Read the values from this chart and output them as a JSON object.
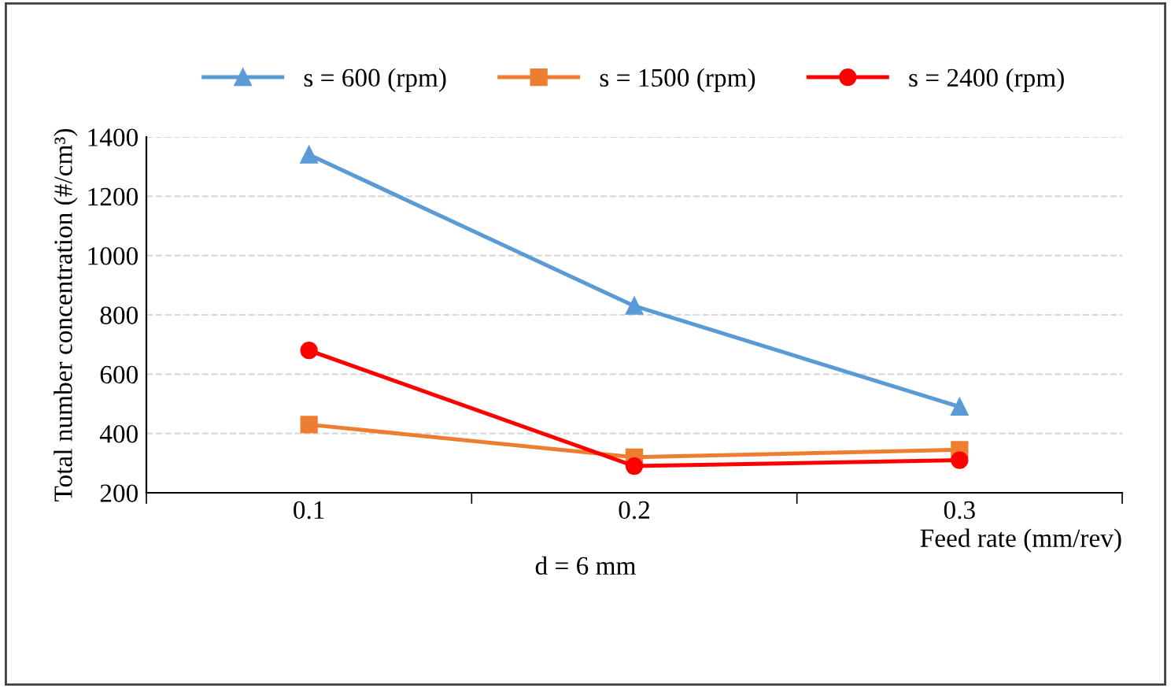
{
  "chart_data": {
    "type": "line",
    "categories": [
      "0.1",
      "0.2",
      "0.3"
    ],
    "series": [
      {
        "name": "s = 600 (rpm)",
        "color": "#5b9bd5",
        "marker": "triangle",
        "values": [
          1340,
          830,
          490
        ]
      },
      {
        "name": "s = 1500 (rpm)",
        "color": "#ed7d31",
        "marker": "square",
        "values": [
          430,
          320,
          345
        ]
      },
      {
        "name": "s = 2400 (rpm)",
        "color": "#ff0000",
        "marker": "circle",
        "values": [
          680,
          290,
          310
        ]
      }
    ],
    "ylabel": "Total number concentration (#/cm³)",
    "xlabel": "Feed rate (mm/rev)",
    "annotations": [
      "d = 6 mm"
    ],
    "ylim": [
      200,
      1400
    ],
    "yticks": [
      200,
      400,
      600,
      800,
      1000,
      1200,
      1400
    ],
    "grid": "y",
    "legend": "top",
    "line_style": "solid"
  }
}
